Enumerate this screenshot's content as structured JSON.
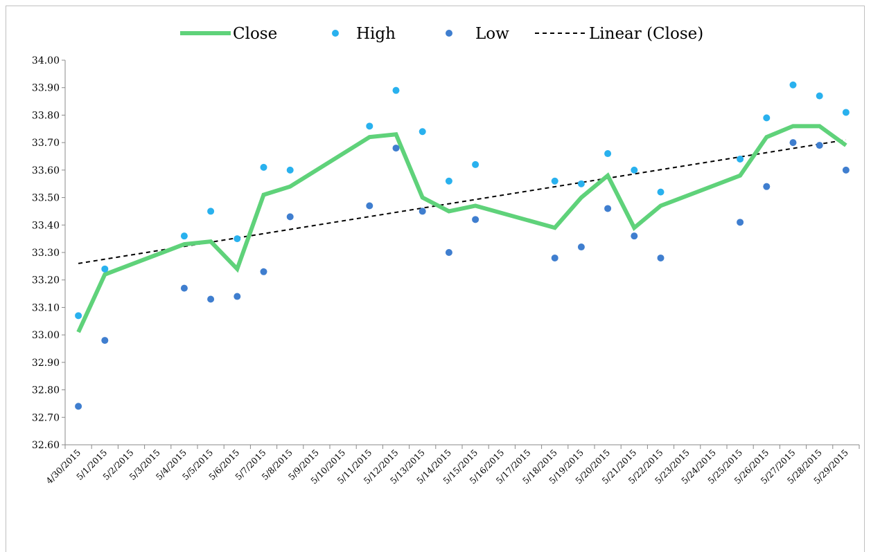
{
  "chart_data": {
    "type": "line",
    "title": "",
    "xlabel": "",
    "ylabel": "",
    "ylim": [
      32.6,
      34.0
    ],
    "y_ticks": [
      "34.00",
      "33.90",
      "33.80",
      "33.70",
      "33.60",
      "33.50",
      "33.40",
      "33.30",
      "33.20",
      "33.10",
      "33.00",
      "32.90",
      "32.80",
      "32.70",
      "32.60"
    ],
    "categories": [
      "4/30/2015",
      "5/1/2015",
      "5/2/2015",
      "5/3/2015",
      "5/4/2015",
      "5/5/2015",
      "5/6/2015",
      "5/7/2015",
      "5/8/2015",
      "5/9/2015",
      "5/10/2015",
      "5/11/2015",
      "5/12/2015",
      "5/13/2015",
      "5/14/2015",
      "5/15/2015",
      "5/16/2015",
      "5/17/2015",
      "5/18/2015",
      "5/19/2015",
      "5/20/2015",
      "5/21/2015",
      "5/22/2015",
      "5/23/2015",
      "5/24/2015",
      "5/25/2015",
      "5/26/2015",
      "5/27/2015",
      "5/28/2015",
      "5/29/2015"
    ],
    "legend_position": "top",
    "grid": false,
    "series": [
      {
        "name": "Close",
        "kind": "line",
        "color": "#5fd27a",
        "points": [
          [
            "4/30/2015",
            33.01
          ],
          [
            "5/1/2015",
            33.22
          ],
          [
            "5/4/2015",
            33.33
          ],
          [
            "5/5/2015",
            33.34
          ],
          [
            "5/6/2015",
            33.24
          ],
          [
            "5/7/2015",
            33.51
          ],
          [
            "5/8/2015",
            33.54
          ],
          [
            "5/11/2015",
            33.72
          ],
          [
            "5/12/2015",
            33.73
          ],
          [
            "5/13/2015",
            33.5
          ],
          [
            "5/14/2015",
            33.45
          ],
          [
            "5/15/2015",
            33.47
          ],
          [
            "5/18/2015",
            33.39
          ],
          [
            "5/19/2015",
            33.5
          ],
          [
            "5/20/2015",
            33.58
          ],
          [
            "5/21/2015",
            33.39
          ],
          [
            "5/22/2015",
            33.47
          ],
          [
            "5/25/2015",
            33.58
          ],
          [
            "5/26/2015",
            33.72
          ],
          [
            "5/27/2015",
            33.76
          ],
          [
            "5/28/2015",
            33.76
          ],
          [
            "5/29/2015",
            33.69
          ]
        ]
      },
      {
        "name": "High",
        "kind": "scatter",
        "color": "#29b1ee",
        "points": [
          [
            "4/30/2015",
            33.07
          ],
          [
            "5/1/2015",
            33.24
          ],
          [
            "5/4/2015",
            33.36
          ],
          [
            "5/5/2015",
            33.45
          ],
          [
            "5/6/2015",
            33.35
          ],
          [
            "5/7/2015",
            33.61
          ],
          [
            "5/8/2015",
            33.6
          ],
          [
            "5/11/2015",
            33.76
          ],
          [
            "5/12/2015",
            33.89
          ],
          [
            "5/13/2015",
            33.74
          ],
          [
            "5/14/2015",
            33.56
          ],
          [
            "5/15/2015",
            33.62
          ],
          [
            "5/18/2015",
            33.56
          ],
          [
            "5/19/2015",
            33.55
          ],
          [
            "5/20/2015",
            33.66
          ],
          [
            "5/21/2015",
            33.6
          ],
          [
            "5/22/2015",
            33.52
          ],
          [
            "5/25/2015",
            33.64
          ],
          [
            "5/26/2015",
            33.79
          ],
          [
            "5/27/2015",
            33.91
          ],
          [
            "5/28/2015",
            33.87
          ],
          [
            "5/29/2015",
            33.81
          ]
        ]
      },
      {
        "name": "Low",
        "kind": "scatter",
        "color": "#3f7ecf",
        "points": [
          [
            "4/30/2015",
            32.74
          ],
          [
            "5/1/2015",
            32.98
          ],
          [
            "5/4/2015",
            33.17
          ],
          [
            "5/5/2015",
            33.13
          ],
          [
            "5/6/2015",
            33.14
          ],
          [
            "5/7/2015",
            33.23
          ],
          [
            "5/8/2015",
            33.43
          ],
          [
            "5/11/2015",
            33.47
          ],
          [
            "5/12/2015",
            33.68
          ],
          [
            "5/13/2015",
            33.45
          ],
          [
            "5/14/2015",
            33.3
          ],
          [
            "5/15/2015",
            33.42
          ],
          [
            "5/18/2015",
            33.28
          ],
          [
            "5/19/2015",
            33.32
          ],
          [
            "5/20/2015",
            33.46
          ],
          [
            "5/21/2015",
            33.36
          ],
          [
            "5/22/2015",
            33.28
          ],
          [
            "5/25/2015",
            33.41
          ],
          [
            "5/26/2015",
            33.54
          ],
          [
            "5/27/2015",
            33.7
          ],
          [
            "5/28/2015",
            33.69
          ],
          [
            "5/29/2015",
            33.6
          ]
        ]
      },
      {
        "name": "Linear (Close)",
        "kind": "trendline",
        "color": "#000000",
        "points": [
          [
            "4/30/2015",
            33.26
          ],
          [
            "5/29/2015",
            33.71
          ]
        ]
      }
    ]
  }
}
